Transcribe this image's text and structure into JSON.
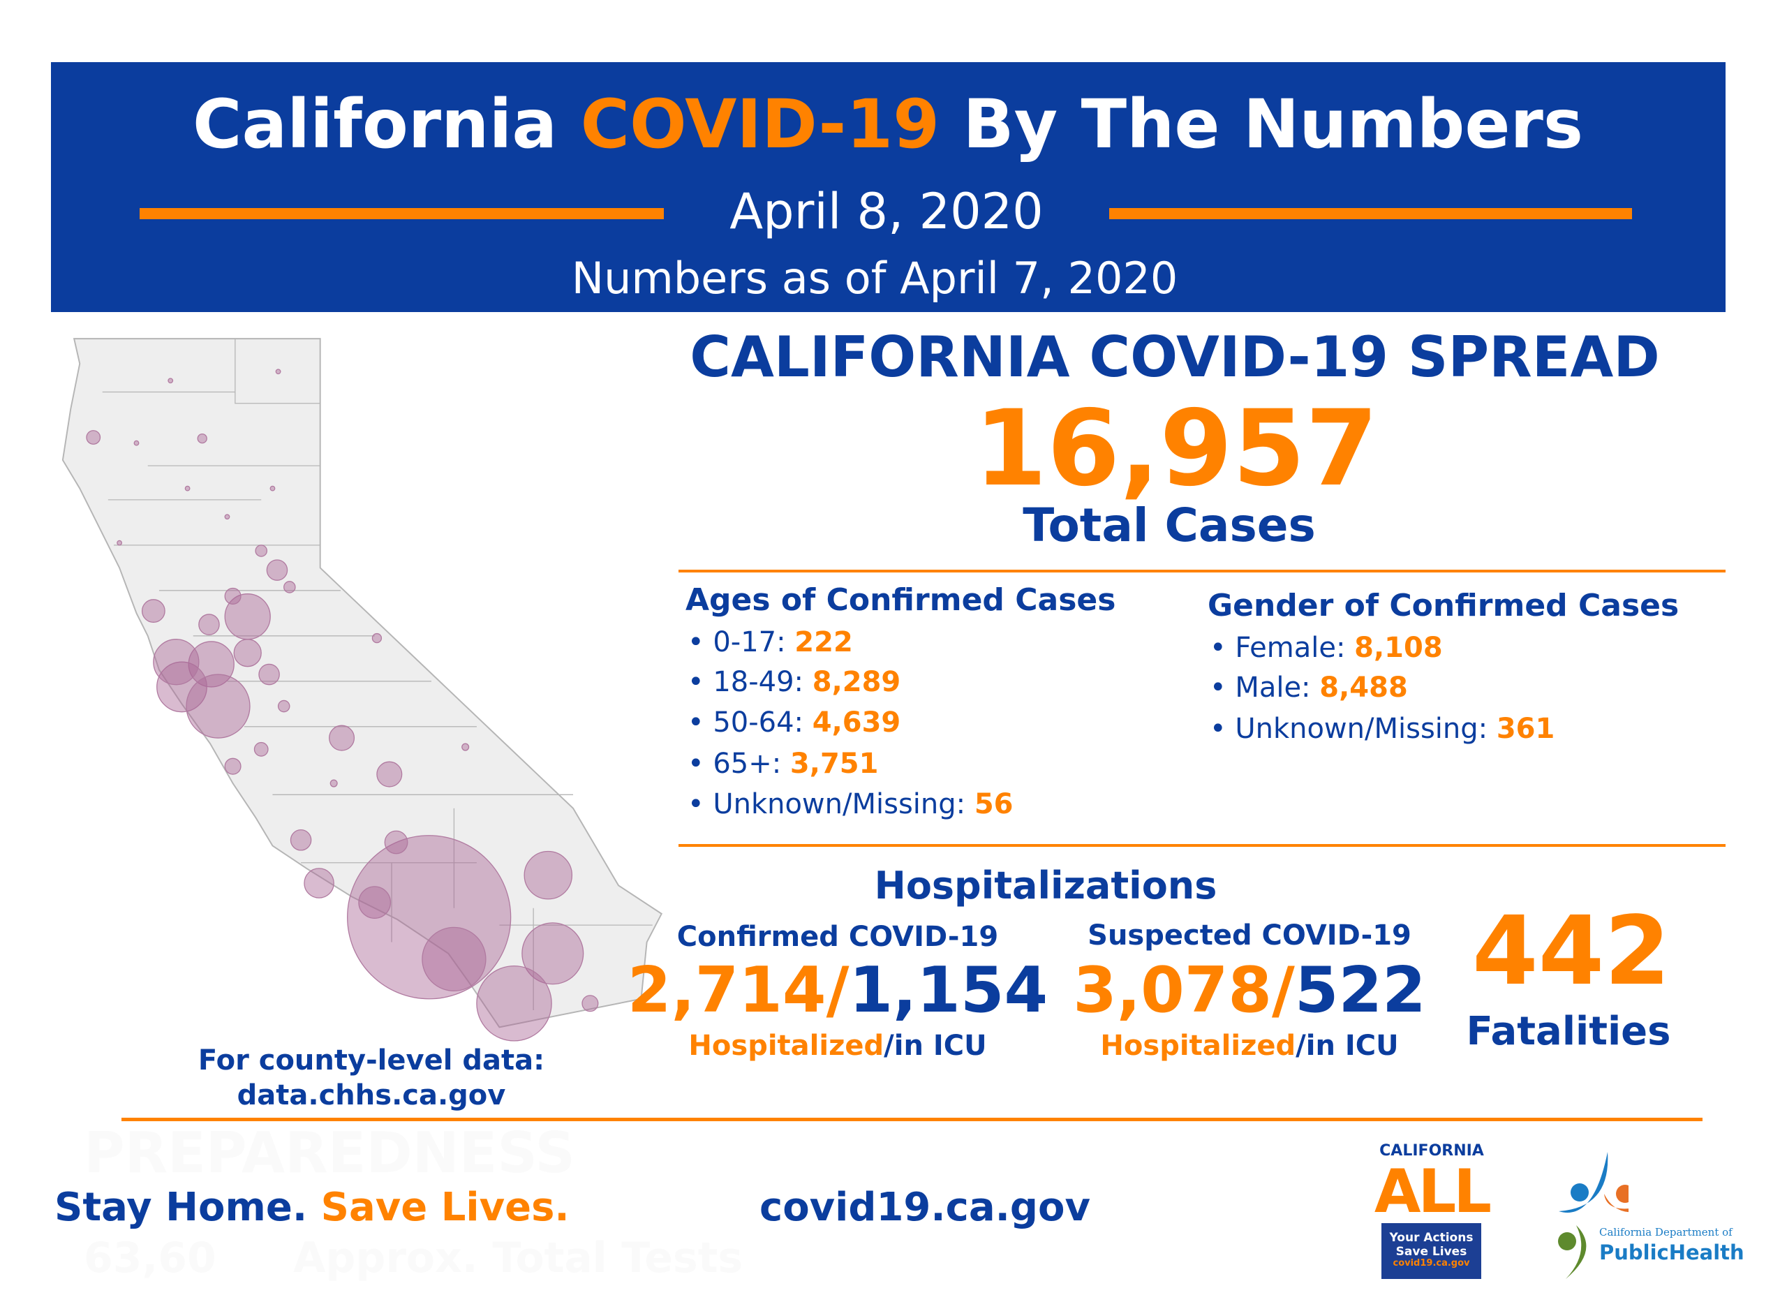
{
  "header": {
    "title_part1": "California",
    "title_highlight": "COVID-19",
    "title_part2": "By The Numbers",
    "date": "April 8, 2020",
    "as_of": "Numbers as of April 7, 2020"
  },
  "spread": {
    "title": "CALIFORNIA COVID-19 SPREAD",
    "total": "16,957",
    "total_label": "Total Cases"
  },
  "ages": {
    "title": "Ages of Confirmed Cases",
    "items": [
      {
        "label": "0-17: ",
        "value": "222"
      },
      {
        "label": "18-49: ",
        "value": "8,289"
      },
      {
        "label": "50-64: ",
        "value": "4,639"
      },
      {
        "label": "65+: ",
        "value": "3,751"
      },
      {
        "label": "Unknown/Missing: ",
        "value": "56"
      }
    ]
  },
  "gender": {
    "title": "Gender of Confirmed Cases",
    "items": [
      {
        "label": "Female: ",
        "value": "8,108"
      },
      {
        "label": "Male: ",
        "value": "8,488"
      },
      {
        "label": "Unknown/Missing: ",
        "value": "361"
      }
    ]
  },
  "hospital": {
    "title": "Hospitalizations",
    "confirmed": {
      "label": "Confirmed COVID-19",
      "hosp": "2,714",
      "icu": "1,154"
    },
    "suspected": {
      "label": "Suspected COVID-19",
      "hosp": "3,078",
      "icu": "522"
    },
    "slash": "/",
    "sub_hosp": "Hospitalized",
    "sub_icu": "/in ICU"
  },
  "fatalities": {
    "value": "442",
    "label": "Fatalities"
  },
  "county": {
    "line1": "For county-level data:",
    "line2": "data.chhs.ca.gov"
  },
  "footer": {
    "slogan_blue": "Stay Home.",
    "slogan_orange": "Save Lives.",
    "url": "covid19.ca.gov",
    "watermark1": "PREPAREDNESS",
    "watermark2": "63,60",
    "watermark3": "Approx. Total Tests"
  },
  "logos": {
    "ca_all_top": "CALIFORNIA",
    "ca_all_big": "ALL",
    "ca_all_box1": "Your Actions",
    "ca_all_box2": "Save Lives",
    "ca_all_url": "covid19.ca.gov",
    "cdph_small": "California Department of",
    "cdph_big": "PublicHealth"
  },
  "colors": {
    "blue": "#0b3d9e",
    "orange": "#ff8200",
    "bubble": "#b07aa0"
  }
}
